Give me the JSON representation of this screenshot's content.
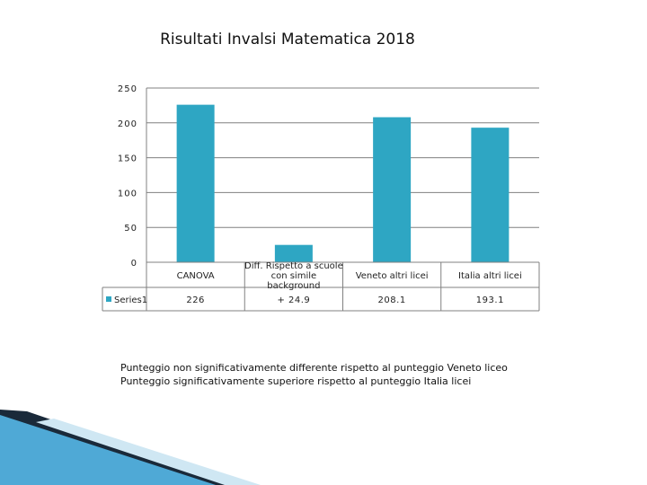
{
  "chart_data": {
    "type": "bar",
    "title": "Risultati Invalsi Matematica 2018",
    "categories": [
      [
        "CANOVA"
      ],
      [
        "Diff. Rispetto a scuole",
        "con simile",
        "background"
      ],
      [
        "Veneto altri licei"
      ],
      [
        "Italia altri licei"
      ]
    ],
    "series": [
      {
        "name": "Series1",
        "values": [
          226,
          24.9,
          208.1,
          193.1
        ],
        "color": "#2ea6c3"
      }
    ],
    "table_values": [
      "226",
      "+  24.9",
      "208.1",
      "193.1"
    ],
    "y_ticks": [
      "250",
      "200",
      "150",
      "100",
      "50",
      "0"
    ],
    "ylim": [
      0,
      250
    ],
    "grid": true,
    "legend": "data-table"
  },
  "footnotes": [
    "Punteggio non significativamente differente rispetto al punteggio Veneto liceo",
    "Punteggio significativamente superiore rispetto al punteggio Italia licei"
  ]
}
